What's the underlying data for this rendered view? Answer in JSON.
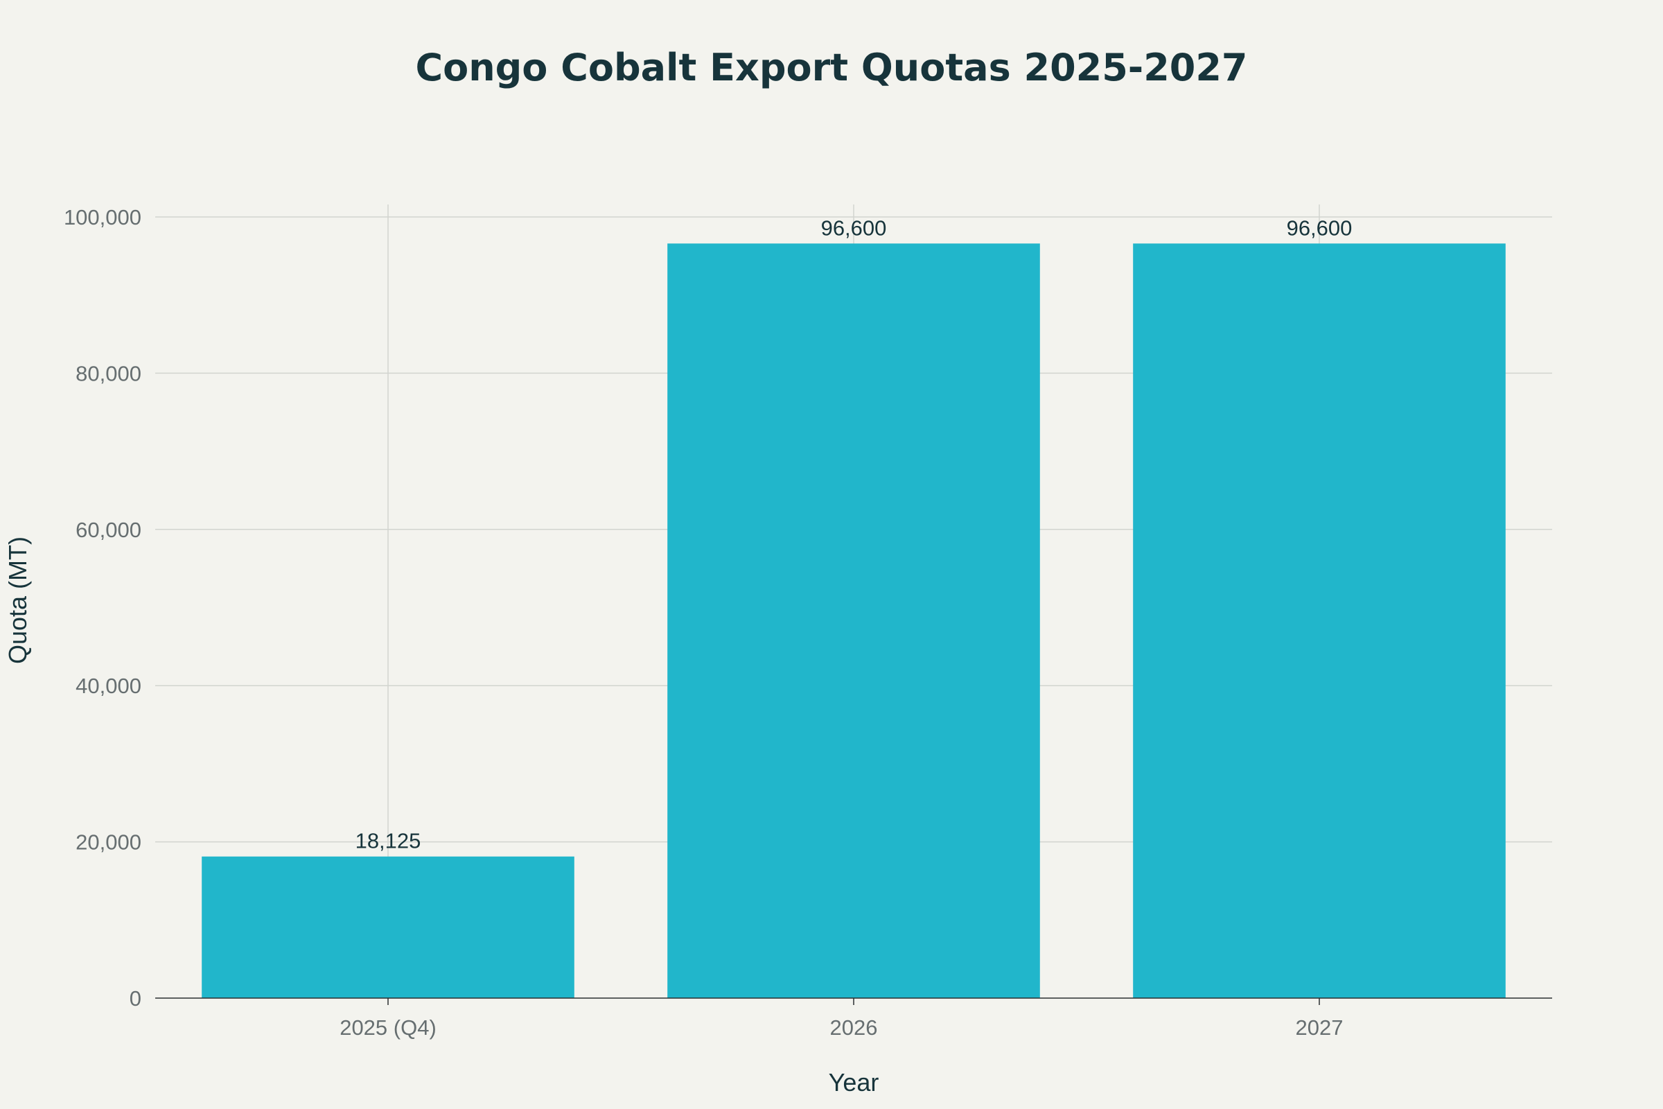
{
  "chart_data": {
    "type": "bar",
    "title": "Congo Cobalt Export Quotas 2025-2027",
    "xlabel": "Year",
    "ylabel": "Quota (MT)",
    "categories": [
      "2025 (Q4)",
      "2026",
      "2027"
    ],
    "values": [
      18125,
      96600,
      96600
    ],
    "data_labels": [
      "18,125",
      "96,600",
      "96,600"
    ],
    "ylim": [
      0,
      100000
    ],
    "yticks": [
      0,
      20000,
      40000,
      60000,
      80000,
      100000
    ],
    "ytick_labels": [
      "0",
      "20,000",
      "40,000",
      "60,000",
      "80,000",
      "100,000"
    ],
    "grid": true,
    "bar_color": "#21b6cb",
    "background_color": "#f3f3ee",
    "legend": "none"
  }
}
